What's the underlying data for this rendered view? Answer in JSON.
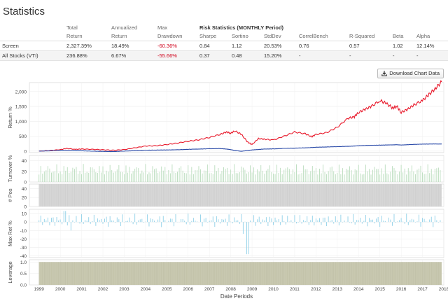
{
  "page": {
    "title": "Statistics"
  },
  "stats": {
    "header_top": [
      "",
      "Total",
      "Annualized",
      "Max",
      "Risk Statistics (MONTHLY Period)",
      "",
      "",
      "",
      "",
      "",
      ""
    ],
    "header_bottom": [
      "",
      "Return",
      "Return",
      "Drawdown",
      "Sharpe",
      "Sortino",
      "StdDev",
      "CorrelBench",
      "R-Squared",
      "Beta",
      "Alpha"
    ],
    "rows": [
      {
        "name": "Screen",
        "cells": [
          "2,327.39%",
          "18.49%",
          "-60.36%",
          "0.84",
          "1.12",
          "20.53%",
          "0.76",
          "0.57",
          "1.02",
          "12.14%"
        ]
      },
      {
        "name": "All Stocks (VTI)",
        "cells": [
          "236.88%",
          "6.67%",
          "-55.66%",
          "0.37",
          "0.48",
          "15.20%",
          "-",
          "-",
          "-",
          "-"
        ]
      }
    ]
  },
  "download_button": {
    "label": "Download Chart Data",
    "icon": "download-icon"
  },
  "colors": {
    "screen": "#e8182a",
    "benchmark": "#2a4aa8",
    "bars": "#a3c9a8",
    "turnover_bars": "#b9dcbc",
    "maxret_bars": "#8fd0e8",
    "positions_fill": "#d6d6d6",
    "leverage_fill": "#c8c8b0"
  },
  "chart_data": [
    {
      "type": "line",
      "panel": "return",
      "ylabel": "Return %",
      "yticks": [
        "2,000",
        "1,500",
        "1,000",
        "500",
        "0"
      ],
      "ylim": [
        -50,
        2300
      ],
      "x": [
        1999.0,
        1999.5,
        2000.0,
        2000.3,
        2000.7,
        2001.0,
        2001.5,
        2002.0,
        2002.5,
        2003.0,
        2003.5,
        2004.0,
        2004.5,
        2005.0,
        2005.5,
        2006.0,
        2006.5,
        2007.0,
        2007.5,
        2007.8,
        2008.0,
        2008.2,
        2008.5,
        2008.8,
        2009.0,
        2009.3,
        2009.6,
        2010.0,
        2010.5,
        2011.0,
        2011.5,
        2011.8,
        2012.0,
        2012.5,
        2013.0,
        2013.5,
        2013.8,
        2014.0,
        2014.3,
        2014.6,
        2015.0,
        2015.3,
        2015.6,
        2015.8,
        2016.0,
        2016.3,
        2016.6,
        2017.0,
        2017.3,
        2017.6,
        2017.9
      ],
      "series": [
        {
          "name": "Screen",
          "values": [
            0,
            20,
            50,
            90,
            60,
            70,
            60,
            45,
            30,
            50,
            110,
            170,
            180,
            220,
            270,
            330,
            380,
            460,
            560,
            640,
            600,
            680,
            560,
            300,
            220,
            420,
            400,
            370,
            500,
            640,
            580,
            480,
            560,
            620,
            800,
            1100,
            1150,
            1300,
            1400,
            1500,
            1700,
            1600,
            1450,
            1500,
            1300,
            1400,
            1550,
            1700,
            1900,
            2100,
            2330
          ]
        },
        {
          "name": "All Stocks (VTI)",
          "values": [
            0,
            10,
            30,
            20,
            15,
            10,
            0,
            -10,
            -15,
            0,
            15,
            30,
            35,
            40,
            45,
            60,
            70,
            80,
            85,
            70,
            50,
            20,
            -5,
            20,
            40,
            55,
            70,
            75,
            90,
            100,
            110,
            120,
            130,
            140,
            150,
            160,
            170,
            180,
            190,
            195,
            200,
            205,
            210,
            215,
            205,
            215,
            225,
            235,
            238,
            240,
            237
          ]
        }
      ]
    },
    {
      "type": "bar",
      "panel": "turnover",
      "ylabel": "Turnover %",
      "yticks": [
        "40",
        "20",
        "0"
      ],
      "ylim": [
        0,
        50
      ],
      "note": "monthly bars ~15-35%"
    },
    {
      "type": "area",
      "panel": "positions",
      "ylabel": "# Pos",
      "yticks": [
        "40",
        "20",
        "0"
      ],
      "ylim": [
        0,
        50
      ],
      "value": 50
    },
    {
      "type": "bar",
      "panel": "maxret",
      "ylabel": "Max Ret %",
      "yticks": [
        "10",
        "0",
        "-10",
        "-20",
        "-30",
        "-40"
      ],
      "ylim": [
        -42,
        15
      ]
    },
    {
      "type": "area",
      "panel": "leverage",
      "ylabel": "Leverage",
      "yticks": [
        "1.0",
        "0.5",
        "0.0"
      ],
      "ylim": [
        0,
        1.1
      ],
      "value": 1.0
    }
  ],
  "x_axis": {
    "label": "Date Periods",
    "ticks": [
      "1999",
      "2000",
      "2001",
      "2002",
      "2003",
      "2004",
      "2005",
      "2006",
      "2007",
      "2008",
      "2009",
      "2010",
      "2011",
      "2012",
      "2013",
      "2014",
      "2015",
      "2016",
      "2017",
      "2018"
    ]
  }
}
